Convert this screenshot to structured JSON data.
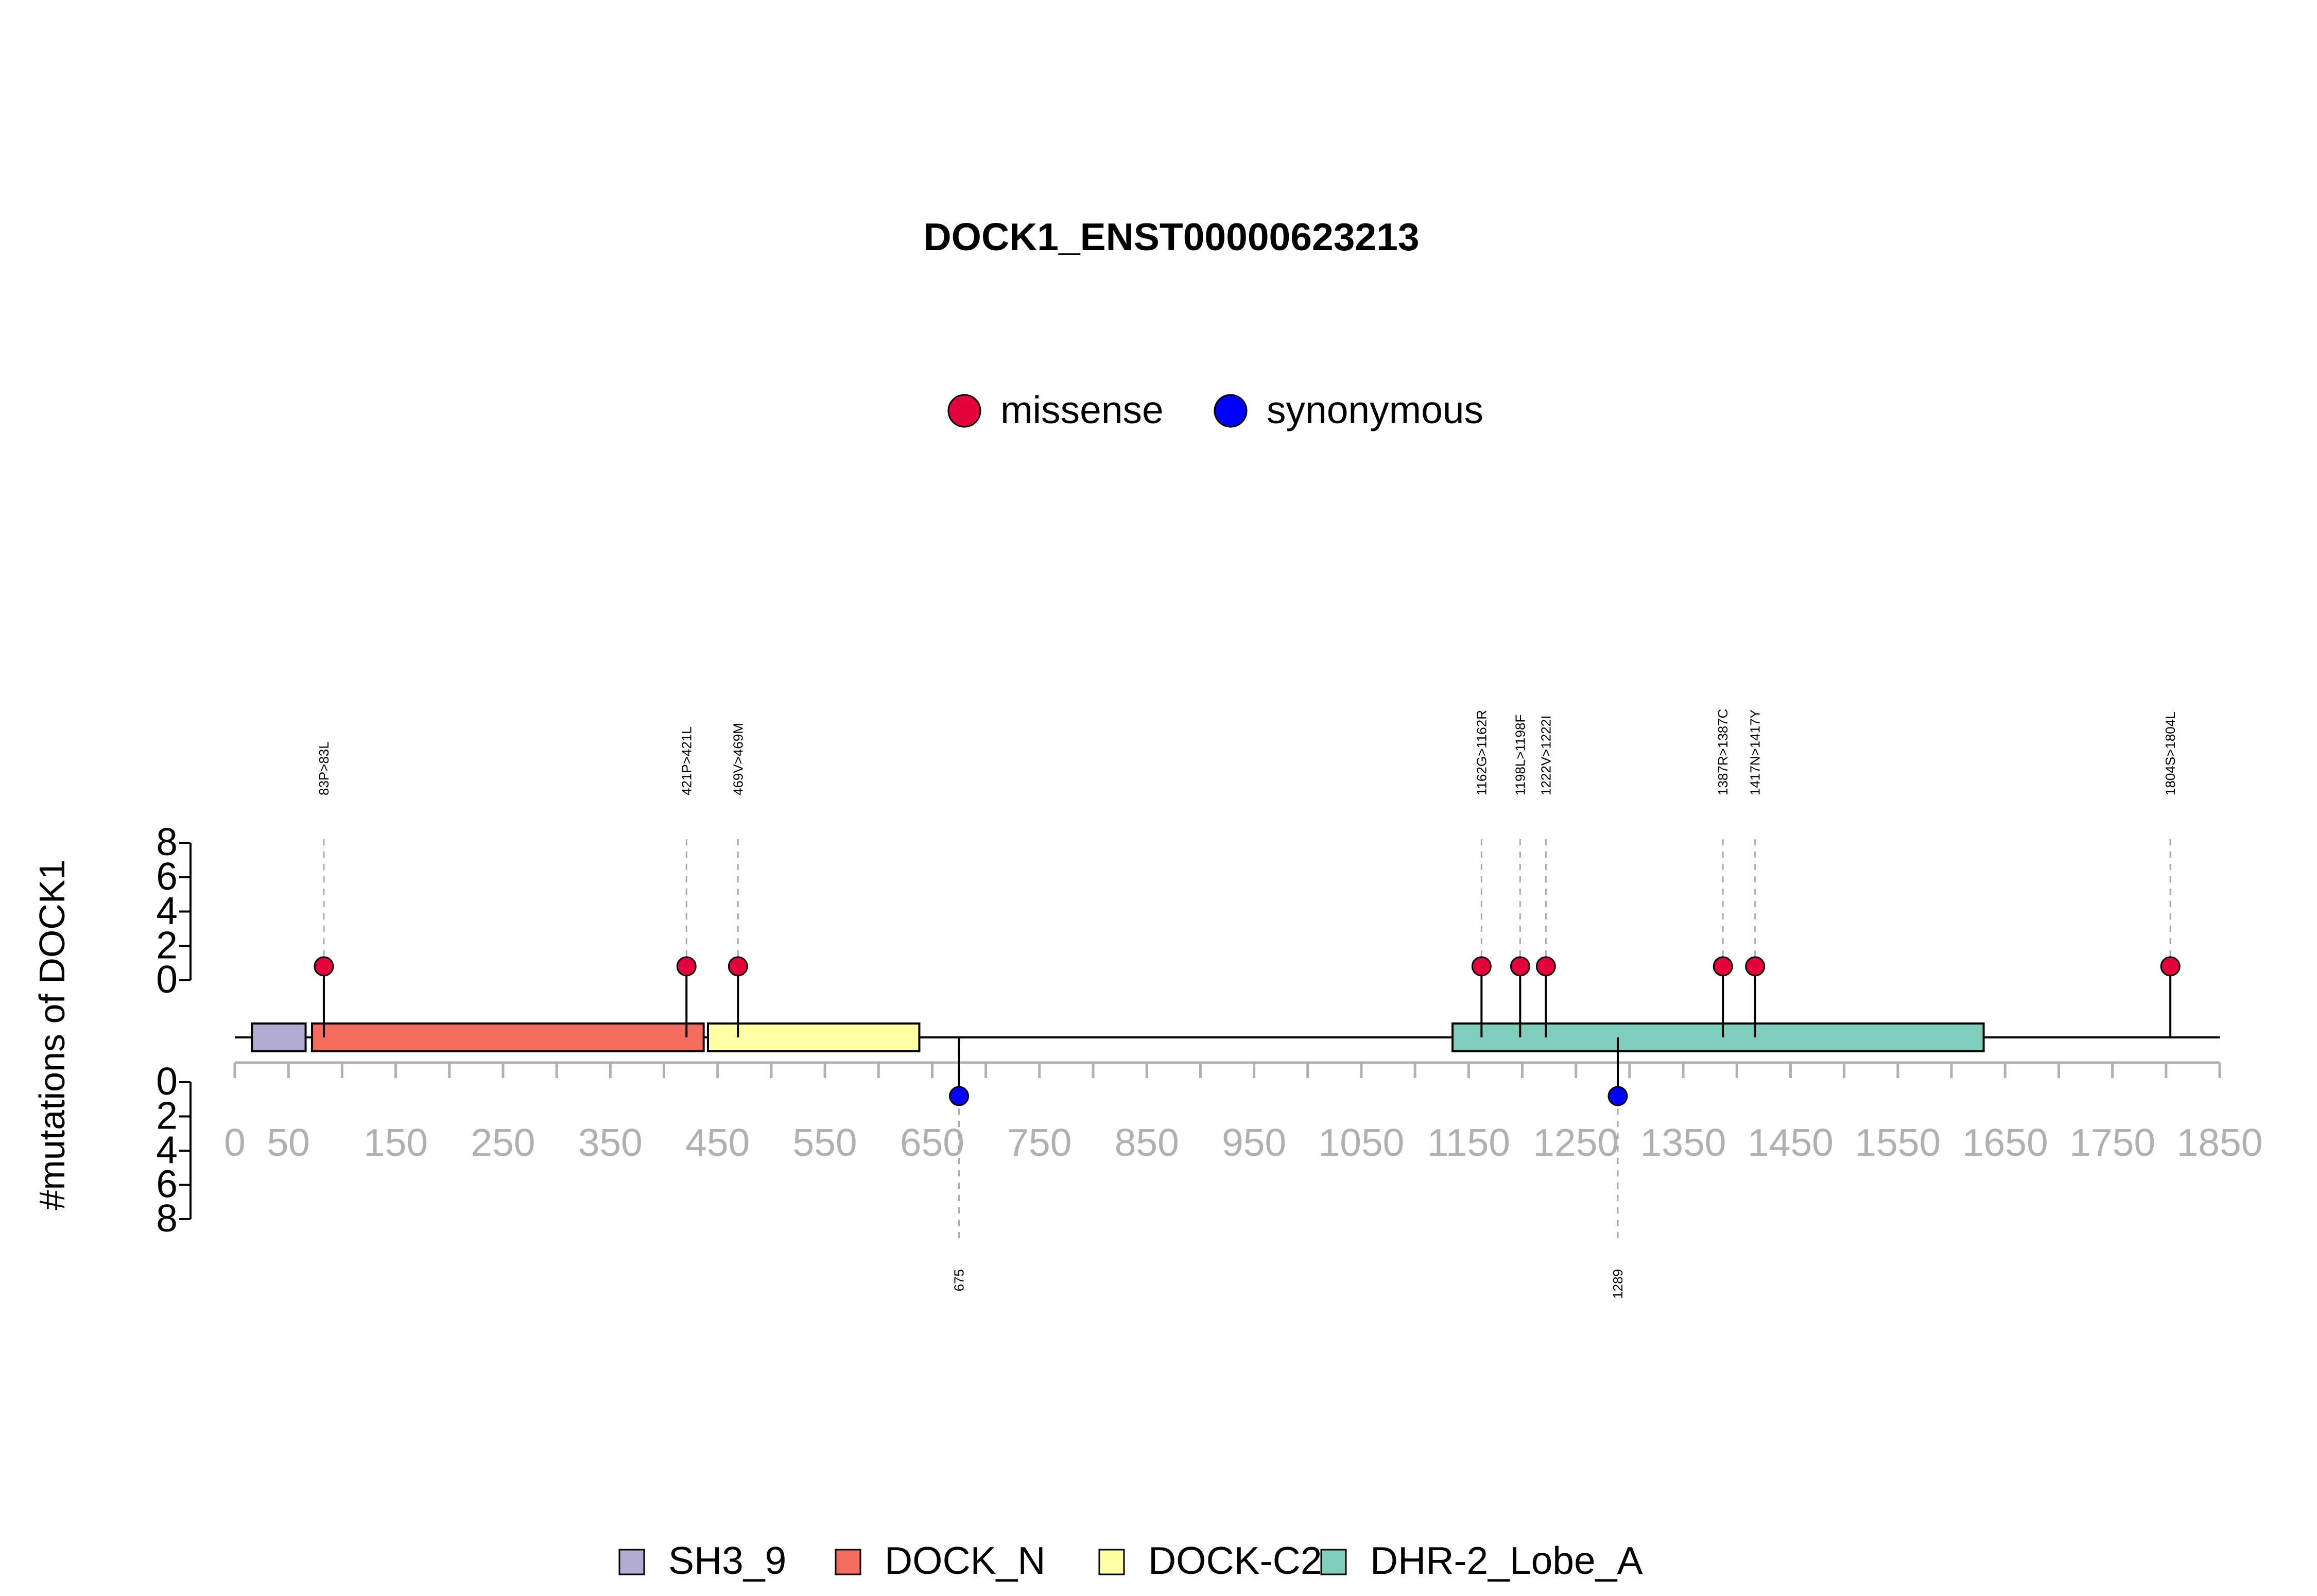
{
  "chart_data": {
    "type": "lollipop",
    "title": "DOCK1_ENST00000623213",
    "ylabel": "#mutations of DOCK1",
    "legend": {
      "position": "top",
      "entries": [
        {
          "name": "missense",
          "color": "#e4003a"
        },
        {
          "name": "synonymous",
          "color": "#0000ff"
        }
      ]
    },
    "domain_legend": {
      "position": "bottom",
      "entries": [
        {
          "name": "SH3_9",
          "color": "#b2abd2"
        },
        {
          "name": "DOCK_N",
          "color": "#f46d5f"
        },
        {
          "name": "DOCK-C2",
          "color": "#ffffa3"
        },
        {
          "name": "DHR-2_Lobe_A",
          "color": "#7fcdbb"
        }
      ]
    },
    "x_axis": {
      "range": [
        0,
        1850
      ],
      "tick_labels": [
        0,
        50,
        150,
        250,
        350,
        450,
        550,
        650,
        750,
        850,
        950,
        1050,
        1150,
        1250,
        1350,
        1450,
        1550,
        1650,
        1750,
        1850
      ]
    },
    "y_axis_upper": {
      "range": [
        0,
        8
      ],
      "ticks": [
        0,
        2,
        4,
        6,
        8
      ]
    },
    "y_axis_lower": {
      "range": [
        0,
        8
      ],
      "ticks": [
        0,
        2,
        4,
        6,
        8
      ]
    },
    "domains": [
      {
        "name": "SH3_9",
        "start": 16,
        "end": 66,
        "color": "#b2abd2"
      },
      {
        "name": "DOCK_N",
        "start": 72,
        "end": 437,
        "color": "#f46d5f"
      },
      {
        "name": "DOCK-C2",
        "start": 441,
        "end": 638,
        "color": "#ffffa3"
      },
      {
        "name": "DHR-2_Lobe_A",
        "start": 1135,
        "end": 1630,
        "color": "#7fcdbb"
      }
    ],
    "mutations_missense": [
      {
        "position": 83,
        "label": "83P>83L",
        "count": 1
      },
      {
        "position": 421,
        "label": "421P>421L",
        "count": 1
      },
      {
        "position": 469,
        "label": "469V>469M",
        "count": 1
      },
      {
        "position": 1162,
        "label": "1162G>1162R",
        "count": 1
      },
      {
        "position": 1198,
        "label": "1198L>1198F",
        "count": 1
      },
      {
        "position": 1222,
        "label": "1222V>1222I",
        "count": 1
      },
      {
        "position": 1387,
        "label": "1387R>1387C",
        "count": 1
      },
      {
        "position": 1417,
        "label": "1417N>1417Y",
        "count": 1
      },
      {
        "position": 1804,
        "label": "1804S>1804L",
        "count": 1
      }
    ],
    "mutations_synonymous": [
      {
        "position": 675,
        "label": "675",
        "count": 1
      },
      {
        "position": 1289,
        "label": "1289",
        "count": 1
      }
    ]
  }
}
